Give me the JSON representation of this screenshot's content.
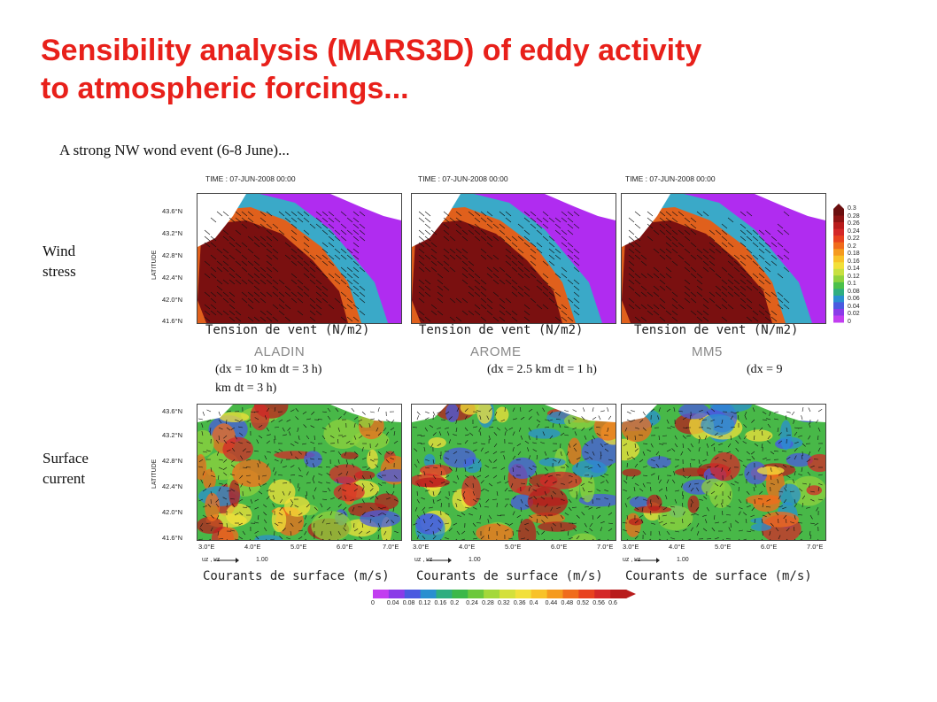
{
  "slide": {
    "title_line1": "Sensibility analysis (MARS3D) of eddy activity",
    "title_line2": "to atmospheric forcings...",
    "subtitle": "A strong NW wond event (6-8 June)...",
    "row_labels": {
      "wind_line1": "Wind",
      "wind_line2": "stress",
      "current_line1": "Surface",
      "current_line2": "current"
    }
  },
  "panels": {
    "time_label": "TIME : 07-JUN-2008 00:00",
    "latitude_title": "LATITUDE",
    "lat_ticks": [
      "43.6°N",
      "43.2°N",
      "42.8°N",
      "42.4°N",
      "42.0°N",
      "41.6°N"
    ],
    "lon_ticks": [
      "3.0°E",
      "4.0°E",
      "5.0°E",
      "6.0°E",
      "7.0°E"
    ],
    "wind_caption": "Tension de vent (N/m2)",
    "current_caption": "Courants de surface (m/s)",
    "vector_ref_label": "uz , vz",
    "vector_ref_value": "1.00"
  },
  "models": [
    {
      "name": "ALADIN",
      "resolution": "(dx = 10 km dt = 3 h)"
    },
    {
      "name": "AROME",
      "resolution": "(dx =  2.5 km dt = 1 h)"
    },
    {
      "name": "MM5",
      "resolution": "(dx = 9"
    }
  ],
  "resolution_wrap": "km dt = 3 h)",
  "wind_colorbar": {
    "values": [
      "0.3",
      "0.28",
      "0.26",
      "0.24",
      "0.22",
      "0.2",
      "0.18",
      "0.16",
      "0.14",
      "0.12",
      "0.1",
      "0.08",
      "0.06",
      "0.04",
      "0.02",
      "0"
    ],
    "colors": [
      "#6b0f0f",
      "#8e1414",
      "#b81c1c",
      "#d42828",
      "#e8421f",
      "#f06c1c",
      "#f59a1e",
      "#f8c228",
      "#f2e03a",
      "#c8e040",
      "#8fd23e",
      "#4cc04a",
      "#2fae80",
      "#2a8fd0",
      "#4a5ae0",
      "#8a3be8",
      "#c23ef0"
    ]
  },
  "current_colorbar": {
    "values": [
      "0",
      "0.04",
      "0.08",
      "0.12",
      "0.16",
      "0.2",
      "0.24",
      "0.28",
      "0.32",
      "0.36",
      "0.4",
      "0.44",
      "0.48",
      "0.52",
      "0.56",
      "0.6"
    ],
    "colors": [
      "#c23ef0",
      "#8a3be8",
      "#4a5ae0",
      "#2a8fd0",
      "#2fae80",
      "#3cb84a",
      "#6cc83c",
      "#a4d83a",
      "#d4e03a",
      "#f2e03a",
      "#f8c228",
      "#f59a1e",
      "#f06c1c",
      "#e8421f",
      "#d42828",
      "#b81c1c"
    ]
  }
}
